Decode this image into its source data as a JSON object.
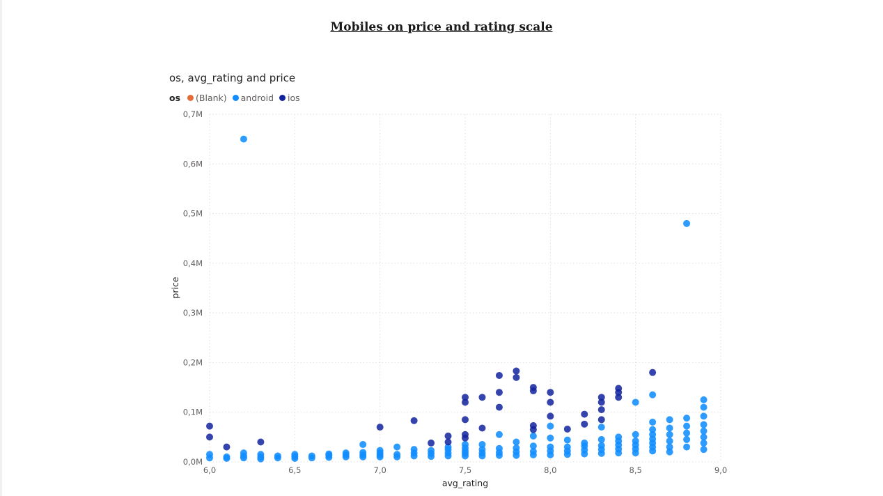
{
  "page": {
    "title": "Mobiles on price and rating scale"
  },
  "visual": {
    "title": "os, avg_rating and price"
  },
  "legend": {
    "title": "os",
    "items": [
      {
        "label": "(Blank)",
        "color": "#e66c37"
      },
      {
        "label": "android",
        "color": "#118dff"
      },
      {
        "label": "ios",
        "color": "#12239e"
      }
    ]
  },
  "chart_data": {
    "type": "scatter",
    "title": "os, avg_rating and price",
    "xlabel": "avg_rating",
    "ylabel": "price",
    "xlim": [
      6.0,
      9.0
    ],
    "ylim": [
      0,
      700000
    ],
    "x_ticks": [
      "6,0",
      "6,5",
      "7,0",
      "7,5",
      "8,0",
      "8,5",
      "9,0"
    ],
    "x_tick_values": [
      6.0,
      6.5,
      7.0,
      7.5,
      8.0,
      8.5,
      9.0
    ],
    "y_ticks": [
      "0,0M",
      "0,1M",
      "0,2M",
      "0,3M",
      "0,4M",
      "0,5M",
      "0,6M",
      "0,7M"
    ],
    "y_tick_values": [
      0,
      100000,
      200000,
      300000,
      400000,
      500000,
      600000,
      700000
    ],
    "grid": true,
    "legend_position": "top-left",
    "series": [
      {
        "name": "(Blank)",
        "color": "#e66c37",
        "points": []
      },
      {
        "name": "android",
        "color": "#118dff",
        "points": [
          [
            6.2,
            650000
          ],
          [
            8.8,
            480000
          ],
          [
            6.0,
            8000
          ],
          [
            6.0,
            15000
          ],
          [
            6.1,
            7000
          ],
          [
            6.1,
            10000
          ],
          [
            6.2,
            8000
          ],
          [
            6.2,
            12000
          ],
          [
            6.2,
            18000
          ],
          [
            6.3,
            6000
          ],
          [
            6.3,
            10000
          ],
          [
            6.3,
            15000
          ],
          [
            6.4,
            8000
          ],
          [
            6.4,
            12000
          ],
          [
            6.5,
            7000
          ],
          [
            6.5,
            11000
          ],
          [
            6.5,
            15000
          ],
          [
            6.6,
            8000
          ],
          [
            6.6,
            12000
          ],
          [
            6.7,
            9000
          ],
          [
            6.7,
            13000
          ],
          [
            6.7,
            16000
          ],
          [
            6.8,
            10000
          ],
          [
            6.8,
            14000
          ],
          [
            6.8,
            18000
          ],
          [
            6.9,
            10000
          ],
          [
            6.9,
            14000
          ],
          [
            6.9,
            19000
          ],
          [
            6.9,
            35000
          ],
          [
            7.0,
            10000
          ],
          [
            7.0,
            14000
          ],
          [
            7.0,
            18000
          ],
          [
            7.0,
            23000
          ],
          [
            7.1,
            10000
          ],
          [
            7.1,
            15000
          ],
          [
            7.1,
            30000
          ],
          [
            7.2,
            12000
          ],
          [
            7.2,
            18000
          ],
          [
            7.2,
            25000
          ],
          [
            7.3,
            11000
          ],
          [
            7.3,
            17000
          ],
          [
            7.3,
            23000
          ],
          [
            7.4,
            12000
          ],
          [
            7.4,
            18000
          ],
          [
            7.4,
            25000
          ],
          [
            7.4,
            30000
          ],
          [
            7.5,
            12000
          ],
          [
            7.5,
            17000
          ],
          [
            7.5,
            22000
          ],
          [
            7.5,
            28000
          ],
          [
            7.5,
            35000
          ],
          [
            7.6,
            12000
          ],
          [
            7.6,
            18000
          ],
          [
            7.6,
            25000
          ],
          [
            7.6,
            35000
          ],
          [
            7.7,
            13000
          ],
          [
            7.7,
            19000
          ],
          [
            7.7,
            27000
          ],
          [
            7.7,
            55000
          ],
          [
            7.8,
            13000
          ],
          [
            7.8,
            20000
          ],
          [
            7.8,
            28000
          ],
          [
            7.8,
            40000
          ],
          [
            7.9,
            14000
          ],
          [
            7.9,
            21000
          ],
          [
            7.9,
            32000
          ],
          [
            7.9,
            52000
          ],
          [
            8.0,
            14000
          ],
          [
            8.0,
            22000
          ],
          [
            8.0,
            30000
          ],
          [
            8.0,
            48000
          ],
          [
            8.0,
            72000
          ],
          [
            8.1,
            15000
          ],
          [
            8.1,
            22000
          ],
          [
            8.1,
            30000
          ],
          [
            8.1,
            44000
          ],
          [
            8.2,
            16000
          ],
          [
            8.2,
            24000
          ],
          [
            8.2,
            32000
          ],
          [
            8.2,
            38000
          ],
          [
            8.3,
            17000
          ],
          [
            8.3,
            25000
          ],
          [
            8.3,
            33000
          ],
          [
            8.3,
            45000
          ],
          [
            8.3,
            70000
          ],
          [
            8.4,
            18000
          ],
          [
            8.4,
            26000
          ],
          [
            8.4,
            34000
          ],
          [
            8.4,
            42000
          ],
          [
            8.4,
            50000
          ],
          [
            8.5,
            18000
          ],
          [
            8.5,
            26000
          ],
          [
            8.5,
            34000
          ],
          [
            8.5,
            42000
          ],
          [
            8.5,
            55000
          ],
          [
            8.5,
            120000
          ],
          [
            8.6,
            22000
          ],
          [
            8.6,
            30000
          ],
          [
            8.6,
            38000
          ],
          [
            8.6,
            46000
          ],
          [
            8.6,
            55000
          ],
          [
            8.6,
            65000
          ],
          [
            8.6,
            80000
          ],
          [
            8.6,
            135000
          ],
          [
            8.7,
            20000
          ],
          [
            8.7,
            30000
          ],
          [
            8.7,
            42000
          ],
          [
            8.7,
            55000
          ],
          [
            8.7,
            68000
          ],
          [
            8.7,
            85000
          ],
          [
            8.8,
            30000
          ],
          [
            8.8,
            45000
          ],
          [
            8.8,
            58000
          ],
          [
            8.8,
            72000
          ],
          [
            8.8,
            88000
          ],
          [
            8.9,
            25000
          ],
          [
            8.9,
            38000
          ],
          [
            8.9,
            50000
          ],
          [
            8.9,
            62000
          ],
          [
            8.9,
            75000
          ],
          [
            8.9,
            92000
          ],
          [
            8.9,
            110000
          ],
          [
            8.9,
            125000
          ]
        ]
      },
      {
        "name": "ios",
        "color": "#12239e",
        "points": [
          [
            6.0,
            72000
          ],
          [
            6.0,
            50000
          ],
          [
            6.1,
            30000
          ],
          [
            6.3,
            40000
          ],
          [
            7.0,
            70000
          ],
          [
            7.2,
            83000
          ],
          [
            7.3,
            38000
          ],
          [
            7.4,
            40000
          ],
          [
            7.4,
            52000
          ],
          [
            7.5,
            130000
          ],
          [
            7.5,
            120000
          ],
          [
            7.5,
            85000
          ],
          [
            7.5,
            55000
          ],
          [
            7.5,
            48000
          ],
          [
            7.6,
            130000
          ],
          [
            7.6,
            68000
          ],
          [
            7.7,
            174000
          ],
          [
            7.7,
            140000
          ],
          [
            7.7,
            110000
          ],
          [
            7.8,
            183000
          ],
          [
            7.8,
            170000
          ],
          [
            7.9,
            150000
          ],
          [
            7.9,
            143000
          ],
          [
            7.9,
            73000
          ],
          [
            7.9,
            65000
          ],
          [
            8.0,
            140000
          ],
          [
            8.0,
            120000
          ],
          [
            8.0,
            92000
          ],
          [
            8.1,
            66000
          ],
          [
            8.2,
            96000
          ],
          [
            8.2,
            76000
          ],
          [
            8.3,
            130000
          ],
          [
            8.3,
            120000
          ],
          [
            8.3,
            105000
          ],
          [
            8.3,
            85000
          ],
          [
            8.4,
            148000
          ],
          [
            8.4,
            140000
          ],
          [
            8.4,
            130000
          ],
          [
            8.6,
            180000
          ]
        ]
      }
    ]
  }
}
